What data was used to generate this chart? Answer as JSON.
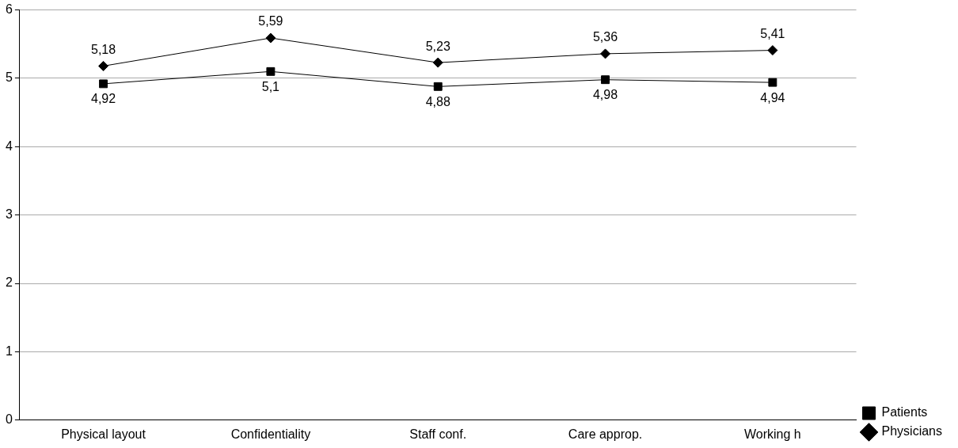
{
  "chart_data": {
    "type": "line",
    "categories": [
      "Physical layout",
      "Confidentiality",
      "Staff conf.",
      "Care approp.",
      "Working h"
    ],
    "series": [
      {
        "name": "Patients",
        "color": "#000000",
        "marker": "square",
        "values": [
          4.92,
          5.1,
          4.88,
          4.98,
          4.94
        ],
        "value_labels": [
          "4,92",
          "5,1",
          "4,88",
          "4,98",
          "4,94"
        ]
      },
      {
        "name": "Physicians",
        "color": "#000000",
        "marker": "diamond",
        "values": [
          5.18,
          5.59,
          5.23,
          5.36,
          5.41
        ],
        "value_labels": [
          "5,18",
          "5,59",
          "5,23",
          "5,36",
          "5,41"
        ]
      }
    ],
    "ylim": [
      0,
      6
    ],
    "yticks": [
      0,
      1,
      2,
      3,
      4,
      5,
      6
    ],
    "grid": "y",
    "legend": "bottom right",
    "line_style": "solid"
  }
}
